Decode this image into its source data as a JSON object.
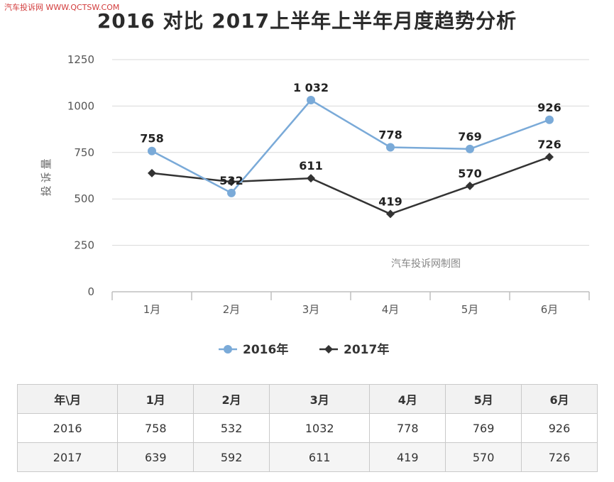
{
  "source_watermark": "汽车投诉网  WWW.QCTSW.COM",
  "chart_data": {
    "type": "line",
    "title": "2016 对比 2017上半年上半年月度趋势分析",
    "ylabel": "投诉量",
    "xlabel": "",
    "categories": [
      "1月",
      "2月",
      "3月",
      "4月",
      "5月",
      "6月"
    ],
    "ylim": [
      0,
      1250
    ],
    "yticks": [
      0,
      250,
      500,
      750,
      1000,
      1250
    ],
    "ytick_labels": [
      "0",
      "250",
      "500",
      "750",
      "1000",
      "1250"
    ],
    "grid": true,
    "legend_position": "bottom",
    "annotation": "汽车投诉网制图",
    "series": [
      {
        "name": "2016年",
        "color": "#7aaad8",
        "marker": "circle",
        "values": [
          758,
          532,
          1032,
          778,
          769,
          926
        ],
        "labels": [
          "758",
          "532",
          "1 032",
          "778",
          "769",
          "926"
        ]
      },
      {
        "name": "2017年",
        "color": "#333333",
        "marker": "diamond",
        "values": [
          639,
          592,
          611,
          419,
          570,
          726
        ],
        "labels": [
          "",
          "",
          "611",
          "419",
          "570",
          "726"
        ]
      }
    ]
  },
  "table": {
    "header": [
      "年\\月",
      "1月",
      "2月",
      "3月",
      "4月",
      "5月",
      "6月"
    ],
    "rows": [
      [
        "2016",
        "758",
        "532",
        "1032",
        "778",
        "769",
        "926"
      ],
      [
        "2017",
        "639",
        "592",
        "611",
        "419",
        "570",
        "726"
      ]
    ]
  }
}
